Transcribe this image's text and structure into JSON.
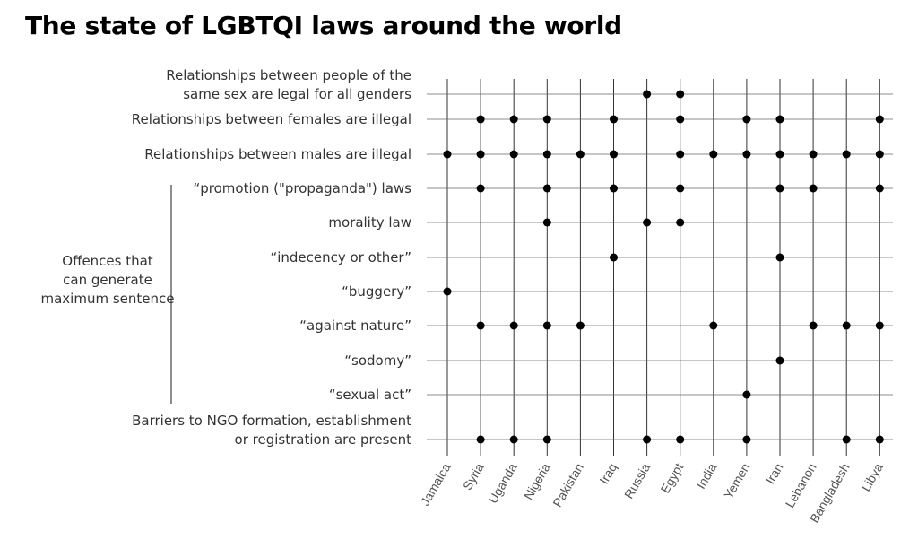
{
  "title": "The state of LGBTQI laws around the world",
  "chart_data": {
    "type": "scatter",
    "title": "The state of LGBTQI laws around the world",
    "x_categories": [
      "Jamaica",
      "Syria",
      "Uganda",
      "Nigeria",
      "Pakistan",
      "Iraq",
      "Russia",
      "Egypt",
      "India",
      "Yemen",
      "Iran",
      "Lebanon",
      "Bangladesh",
      "Libya"
    ],
    "rows": [
      {
        "label_lines": [
          "Relationships between people of the",
          "same sex are legal for all genders"
        ],
        "countries": [
          "Russia",
          "Egypt"
        ]
      },
      {
        "label_lines": [
          "Relationships between females are illegal"
        ],
        "countries": [
          "Syria",
          "Uganda",
          "Nigeria",
          "Iraq",
          "Egypt",
          "Yemen",
          "Iran",
          "Libya"
        ]
      },
      {
        "label_lines": [
          "Relationships between males are illegal"
        ],
        "countries": [
          "Jamaica",
          "Syria",
          "Uganda",
          "Nigeria",
          "Pakistan",
          "Iraq",
          "Egypt",
          "India",
          "Yemen",
          "Iran",
          "Lebanon",
          "Bangladesh",
          "Libya"
        ]
      },
      {
        "label_lines": [
          "“promotion (\"propaganda\") laws"
        ],
        "countries": [
          "Syria",
          "Nigeria",
          "Iraq",
          "Egypt",
          "Iran",
          "Lebanon",
          "Libya"
        ]
      },
      {
        "label_lines": [
          "morality law"
        ],
        "countries": [
          "Nigeria",
          "Russia",
          "Egypt"
        ]
      },
      {
        "label_lines": [
          "“indecency or other”"
        ],
        "countries": [
          "Iraq",
          "Iran"
        ]
      },
      {
        "label_lines": [
          "“buggery”"
        ],
        "countries": [
          "Jamaica"
        ]
      },
      {
        "label_lines": [
          "“against nature”"
        ],
        "countries": [
          "Syria",
          "Uganda",
          "Nigeria",
          "Pakistan",
          "India",
          "Lebanon",
          "Bangladesh",
          "Libya"
        ]
      },
      {
        "label_lines": [
          "“sodomy”"
        ],
        "countries": [
          "Iran"
        ]
      },
      {
        "label_lines": [
          "“sexual act”"
        ],
        "countries": [
          "Yemen"
        ]
      },
      {
        "label_lines": [
          "Barriers to NGO formation, establishment",
          "or registration are present"
        ],
        "countries": [
          "Syria",
          "Uganda",
          "Nigeria",
          "Russia",
          "Egypt",
          "Yemen",
          "Bangladesh",
          "Libya"
        ]
      }
    ],
    "group": {
      "label_lines": [
        "Offences that",
        "can generate",
        "maximum sentence"
      ],
      "first_row": 3,
      "last_row": 9
    },
    "colors": {
      "dot": "#000000",
      "grid": "#333333",
      "label": "#333333",
      "axis_text": "#555555"
    }
  }
}
